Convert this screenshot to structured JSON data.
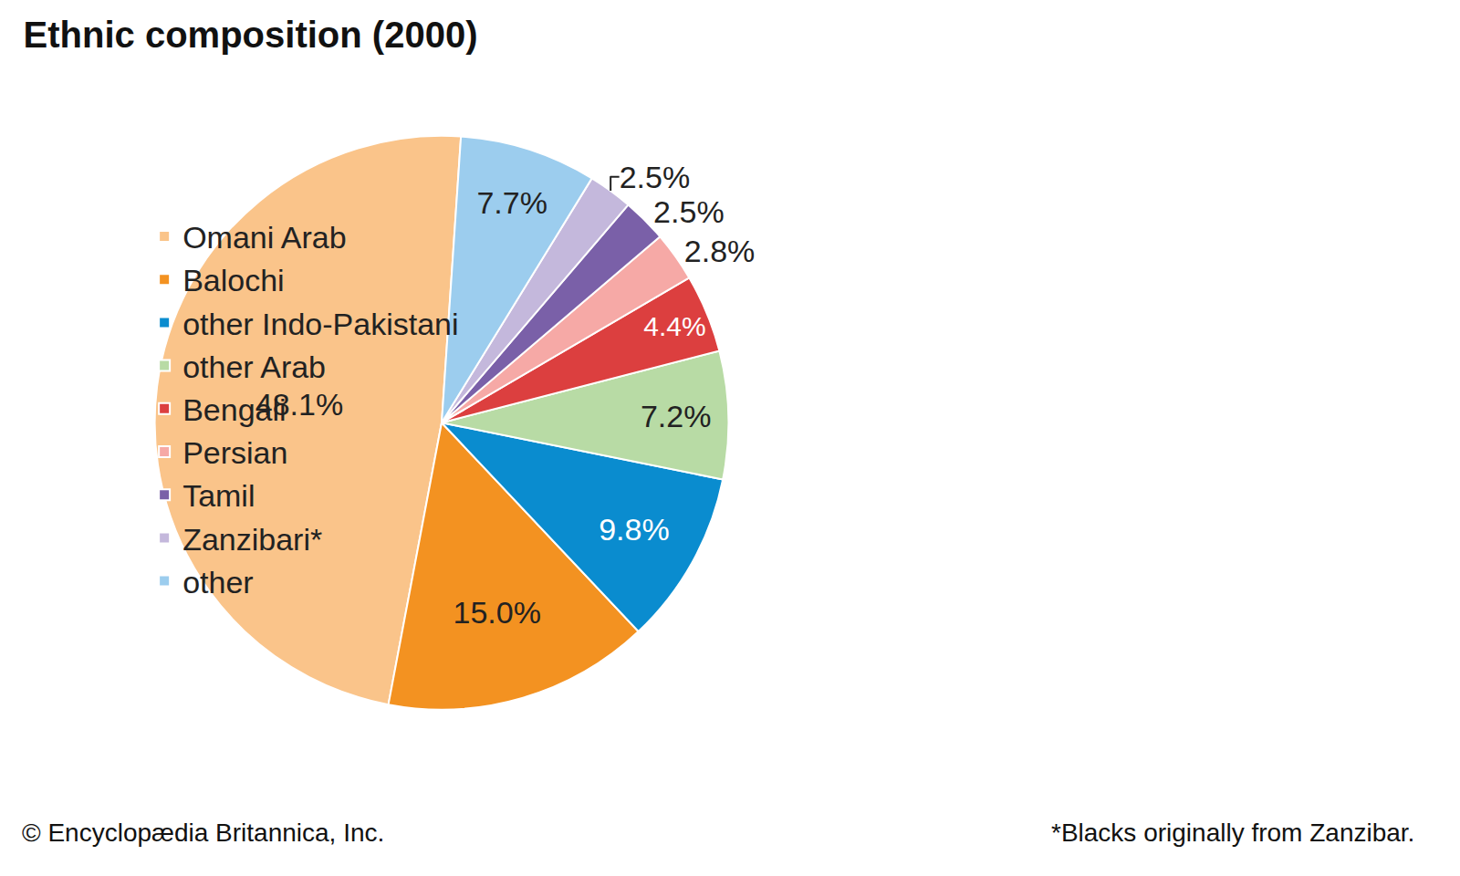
{
  "chart_data": {
    "type": "pie",
    "title": "Ethnic composition (2000)",
    "categories": [
      "Omani Arab",
      "Balochi",
      "other Indo-Pakistani",
      "other Arab",
      "Bengali",
      "Persian",
      "Tamil",
      "Zanzibari*",
      "other"
    ],
    "values": [
      48.1,
      15.0,
      9.8,
      7.2,
      4.4,
      2.8,
      2.5,
      2.5,
      7.7
    ],
    "value_labels": [
      "48.1%",
      "15.0%",
      "9.8%",
      "7.2%",
      "4.4%",
      "2.8%",
      "2.5%",
      "2.5%",
      "7.7%"
    ],
    "colors": [
      "#fac48a",
      "#f39221",
      "#0a8ccf",
      "#b8dba5",
      "#dc3f3f",
      "#f6a9a6",
      "#7a60a8",
      "#c4b8dc",
      "#9ccdee"
    ],
    "data_labels": true,
    "legend": "right",
    "annotations": [
      "© Encyclopædia Britannica, Inc.",
      "*Blacks originally from Zanzibar."
    ]
  }
}
